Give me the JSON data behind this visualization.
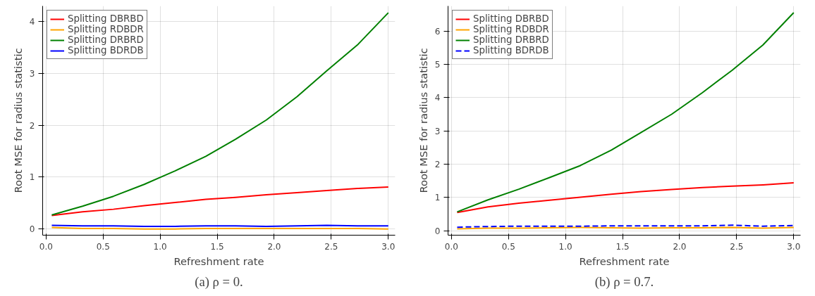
{
  "chart_data": [
    {
      "type": "line",
      "xlabel": "Refreshment rate",
      "ylabel": "Root MSE for radius statistic",
      "annotations": [
        "(a) ρ = 0."
      ],
      "x": [
        0.05,
        0.32,
        0.59,
        0.86,
        1.13,
        1.4,
        1.66,
        1.93,
        2.2,
        2.46,
        2.73,
        3.0
      ],
      "xlim": [
        -0.03,
        3.06
      ],
      "xticks": [
        {
          "value": 0,
          "label": "0.0"
        },
        0.5,
        {
          "value": 1,
          "label": "1.0"
        },
        1.5,
        {
          "value": 2,
          "label": "2.0"
        },
        2.5,
        {
          "value": 3,
          "label": "3.0"
        }
      ],
      "ylim": [
        -0.12,
        4.3
      ],
      "yticks": [
        0,
        1,
        2,
        3,
        4
      ],
      "grid": true,
      "legend": "top left",
      "line_style": "solid",
      "series": [
        {
          "name": "Splitting DBRBD",
          "color": "#ff0000",
          "values": [
            0.26,
            0.33,
            0.38,
            0.45,
            0.51,
            0.57,
            0.61,
            0.66,
            0.7,
            0.74,
            0.78,
            0.81
          ]
        },
        {
          "name": "Splitting RDBDR",
          "color": "#ffa500",
          "values": [
            0.03,
            0.01,
            0.01,
            0.0,
            0.0,
            0.01,
            0.01,
            0.01,
            0.01,
            0.01,
            0.01,
            0.0
          ]
        },
        {
          "name": "Splitting DRBRD",
          "color": "#008000",
          "values": [
            0.27,
            0.44,
            0.63,
            0.86,
            1.12,
            1.4,
            1.73,
            2.1,
            2.55,
            3.05,
            3.55,
            4.17
          ]
        },
        {
          "name": "Splitting BDRDB",
          "color": "#0000ff",
          "values": [
            0.07,
            0.06,
            0.06,
            0.05,
            0.05,
            0.06,
            0.06,
            0.05,
            0.06,
            0.07,
            0.06,
            0.06
          ]
        }
      ]
    },
    {
      "type": "line",
      "xlabel": "Refreshment rate",
      "ylabel": "Root MSE for radius statistic",
      "annotations": [
        "(b) ρ = 0.7."
      ],
      "x": [
        0.05,
        0.32,
        0.59,
        0.86,
        1.13,
        1.4,
        1.66,
        1.93,
        2.2,
        2.46,
        2.73,
        3.0
      ],
      "xlim": [
        -0.03,
        3.06
      ],
      "xticks": [
        {
          "value": 0,
          "label": "0.0"
        },
        0.5,
        {
          "value": 1,
          "label": "1.0"
        },
        1.5,
        {
          "value": 2,
          "label": "2.0"
        },
        2.5,
        {
          "value": 3,
          "label": "3.0"
        }
      ],
      "ylim": [
        -0.13,
        6.75
      ],
      "yticks": [
        0,
        1,
        2,
        3,
        4,
        5,
        6
      ],
      "grid": true,
      "legend": "top left",
      "line_style": "solid",
      "series": [
        {
          "name": "Splitting DBRBD",
          "color": "#ff0000",
          "values": [
            0.55,
            0.72,
            0.83,
            0.92,
            1.01,
            1.1,
            1.18,
            1.24,
            1.3,
            1.34,
            1.38,
            1.44
          ]
        },
        {
          "name": "Splitting RDBDR",
          "color": "#ffa500",
          "values": [
            0.06,
            0.08,
            0.08,
            0.09,
            0.1,
            0.09,
            0.08,
            0.09,
            0.09,
            0.1,
            0.08,
            0.1
          ]
        },
        {
          "name": "Splitting DRBRD",
          "color": "#008000",
          "values": [
            0.57,
            0.93,
            1.25,
            1.6,
            1.96,
            2.42,
            2.95,
            3.5,
            4.15,
            4.82,
            5.58,
            6.55
          ]
        },
        {
          "name": "Splitting BDRDB",
          "color": "#0000ff",
          "line_style": "dashed",
          "values": [
            0.11,
            0.13,
            0.14,
            0.14,
            0.14,
            0.15,
            0.15,
            0.15,
            0.15,
            0.17,
            0.14,
            0.16
          ]
        }
      ]
    }
  ]
}
